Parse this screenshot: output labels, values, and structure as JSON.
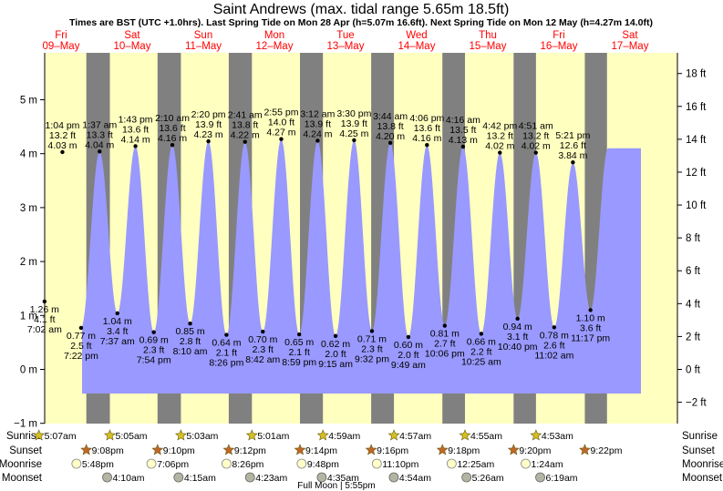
{
  "chart_data": {
    "type": "area",
    "title": "Saint Andrews (max. tidal range 5.65m 18.5ft)",
    "subtitle": "Times are BST (UTC +1.0hrs). Last Spring Tide on Mon 28 Apr (h=5.07m 16.6ft). Next Spring Tide on Mon 12 May (h=4.27m 14.0ft)",
    "ylim_m": [
      -1,
      5.8
    ],
    "left_ticks": [
      "5 m",
      "4 m",
      "3 m",
      "2 m",
      "1 m",
      "0 m",
      "−1 m"
    ],
    "left_tick_values": [
      5,
      4,
      3,
      2,
      1,
      0,
      -1
    ],
    "right_ticks": [
      "18 ft",
      "16 ft",
      "14 ft",
      "12 ft",
      "10 ft",
      "8 ft",
      "6 ft",
      "4 ft",
      "2 ft",
      "0 ft",
      "−2 ft"
    ],
    "right_tick_values": [
      18,
      16,
      14,
      12,
      10,
      8,
      6,
      4,
      2,
      0,
      -2
    ],
    "days": [
      {
        "dow": "Fri",
        "date": "09–May"
      },
      {
        "dow": "Sat",
        "date": "10–May"
      },
      {
        "dow": "Sun",
        "date": "11–May"
      },
      {
        "dow": "Mon",
        "date": "12–May"
      },
      {
        "dow": "Tue",
        "date": "13–May"
      },
      {
        "dow": "Wed",
        "date": "14–May"
      },
      {
        "dow": "Thu",
        "date": "15–May"
      },
      {
        "dow": "Fri",
        "date": "16–May"
      },
      {
        "dow": "Sat",
        "date": "17–May"
      }
    ],
    "tides": [
      {
        "type": "low",
        "day": 0,
        "time": "7:02 am",
        "ft": "4.1 ft",
        "m": "1.26 m",
        "h": 1.26
      },
      {
        "type": "high",
        "day": 0,
        "time": "1:04 pm",
        "ft": "13.2 ft",
        "m": "4.03 m",
        "h": 4.03
      },
      {
        "type": "low",
        "day": 0,
        "time": "7:22 pm",
        "ft": "2.5 ft",
        "m": "0.77 m",
        "h": 0.77
      },
      {
        "type": "high",
        "day": 1,
        "time": "1:37 am",
        "ft": "13.3 ft",
        "m": "4.04 m",
        "h": 4.04
      },
      {
        "type": "low",
        "day": 1,
        "time": "7:37 am",
        "ft": "3.4 ft",
        "m": "1.04 m",
        "h": 1.04
      },
      {
        "type": "high",
        "day": 1,
        "time": "1:43 pm",
        "ft": "13.6 ft",
        "m": "4.14 m",
        "h": 4.14
      },
      {
        "type": "low",
        "day": 1,
        "time": "7:54 pm",
        "ft": "2.3 ft",
        "m": "0.69 m",
        "h": 0.69
      },
      {
        "type": "high",
        "day": 2,
        "time": "2:10 am",
        "ft": "13.6 ft",
        "m": "4.16 m",
        "h": 4.16
      },
      {
        "type": "low",
        "day": 2,
        "time": "8:10 am",
        "ft": "2.8 ft",
        "m": "0.85 m",
        "h": 0.85
      },
      {
        "type": "high",
        "day": 2,
        "time": "2:20 pm",
        "ft": "13.9 ft",
        "m": "4.23 m",
        "h": 4.23
      },
      {
        "type": "low",
        "day": 2,
        "time": "8:26 pm",
        "ft": "2.1 ft",
        "m": "0.64 m",
        "h": 0.64
      },
      {
        "type": "high",
        "day": 3,
        "time": "2:41 am",
        "ft": "13.8 ft",
        "m": "4.22 m",
        "h": 4.22
      },
      {
        "type": "low",
        "day": 3,
        "time": "8:42 am",
        "ft": "2.3 ft",
        "m": "0.70 m",
        "h": 0.7
      },
      {
        "type": "high",
        "day": 3,
        "time": "2:55 pm",
        "ft": "14.0 ft",
        "m": "4.27 m",
        "h": 4.27
      },
      {
        "type": "low",
        "day": 3,
        "time": "8:59 pm",
        "ft": "2.1 ft",
        "m": "0.65 m",
        "h": 0.65
      },
      {
        "type": "high",
        "day": 4,
        "time": "3:12 am",
        "ft": "13.9 ft",
        "m": "4.24 m",
        "h": 4.24
      },
      {
        "type": "low",
        "day": 4,
        "time": "9:15 am",
        "ft": "2.0 ft",
        "m": "0.62 m",
        "h": 0.62
      },
      {
        "type": "high",
        "day": 4,
        "time": "3:30 pm",
        "ft": "13.9 ft",
        "m": "4.25 m",
        "h": 4.25
      },
      {
        "type": "low",
        "day": 4,
        "time": "9:32 pm",
        "ft": "2.3 ft",
        "m": "0.71 m",
        "h": 0.71
      },
      {
        "type": "high",
        "day": 5,
        "time": "3:44 am",
        "ft": "13.8 ft",
        "m": "4.20 m",
        "h": 4.2
      },
      {
        "type": "low",
        "day": 5,
        "time": "9:49 am",
        "ft": "2.0 ft",
        "m": "0.60 m",
        "h": 0.6
      },
      {
        "type": "high",
        "day": 5,
        "time": "4:06 pm",
        "ft": "13.6 ft",
        "m": "4.16 m",
        "h": 4.16
      },
      {
        "type": "low",
        "day": 5,
        "time": "10:06 pm",
        "ft": "2.7 ft",
        "m": "0.81 m",
        "h": 0.81
      },
      {
        "type": "high",
        "day": 6,
        "time": "4:16 am",
        "ft": "13.5 ft",
        "m": "4.13 m",
        "h": 4.13
      },
      {
        "type": "low",
        "day": 6,
        "time": "10:25 am",
        "ft": "2.2 ft",
        "m": "0.66 m",
        "h": 0.66
      },
      {
        "type": "high",
        "day": 6,
        "time": "4:42 pm",
        "ft": "13.2 ft",
        "m": "4.02 m",
        "h": 4.02
      },
      {
        "type": "low",
        "day": 6,
        "time": "10:40 pm",
        "ft": "3.1 ft",
        "m": "0.94 m",
        "h": 0.94
      },
      {
        "type": "high",
        "day": 7,
        "time": "4:51 am",
        "ft": "13.2 ft",
        "m": "4.02 m",
        "h": 4.02
      },
      {
        "type": "low",
        "day": 7,
        "time": "11:02 am",
        "ft": "2.6 ft",
        "m": "0.78 m",
        "h": 0.78
      },
      {
        "type": "high",
        "day": 7,
        "time": "5:21 pm",
        "ft": "12.6 ft",
        "m": "3.84 m",
        "h": 3.84
      },
      {
        "type": "low",
        "day": 7,
        "time": "11:17 pm",
        "ft": "3.6 ft",
        "m": "1.10 m",
        "h": 1.1
      }
    ],
    "astro_labels": [
      "Sunrise",
      "Sunset",
      "Moonrise",
      "Moonset"
    ],
    "sunrise": [
      "5:07am",
      "5:05am",
      "5:03am",
      "5:01am",
      "4:59am",
      "4:57am",
      "4:55am",
      "4:53am"
    ],
    "sunset": [
      "9:08pm",
      "9:10pm",
      "9:12pm",
      "9:14pm",
      "9:16pm",
      "9:18pm",
      "9:20pm",
      "9:22pm"
    ],
    "moonrise": [
      "5:48pm",
      "7:06pm",
      "8:26pm",
      "9:48pm",
      "11:10pm",
      "12:25am",
      "1:24am"
    ],
    "moonset": [
      "4:10am",
      "4:15am",
      "4:23am",
      "4:35am",
      "4:54am",
      "5:26am",
      "6:19am"
    ],
    "moon_phase": "Full Moon | 5:55pm",
    "colors": {
      "night": "#808080",
      "day": "#ffffc0",
      "water": "#9999ff",
      "day_label": "#ff0000",
      "sun_star": "#d4c020",
      "sunset_star": "#c06828",
      "moonrise": "#ffffc8",
      "moonset": "#b4b4a4"
    }
  }
}
